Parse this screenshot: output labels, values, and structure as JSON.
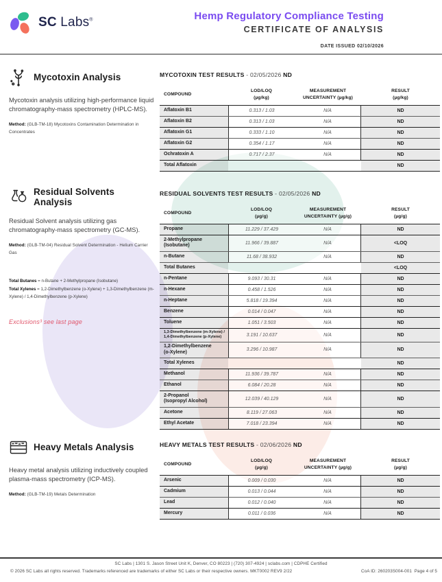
{
  "header": {
    "logo_sc": "SC",
    "logo_labs": "Labs",
    "logo_reg": "®",
    "title": "Hemp Regulatory Compliance Testing",
    "subtitle": "CERTIFICATE OF ANALYSIS",
    "date_issued": "DATE ISSUED 02/10/2026"
  },
  "colors": {
    "accent_purple": "#7a4bf0",
    "logo_green": "#2ebd8e",
    "logo_purple": "#7a5bf0",
    "logo_orange": "#f4715c",
    "exclusion_red": "#e0556a",
    "watermark_teal": "#e2f1ec",
    "watermark_lavender": "#eae6f7",
    "watermark_pink": "#fcece7"
  },
  "sections": [
    {
      "icon": "mycotoxin-spore-icon",
      "title": "Mycotoxin Analysis",
      "description": "Mycotoxin analysis utilizing high-performance liquid chromatography-mass spectrometry (HPLC-MS).",
      "method_label": "Method:",
      "method": " (GLB-TM-18) Mycotoxins Contamination Determination in Concentrates",
      "table": {
        "name": "MYCOTOXIN TEST RESULTS",
        "separator": " - ",
        "date": "02/05/2026",
        "flag": "ND",
        "columns": [
          "COMPOUND",
          "LOD/LOQ",
          "MEASUREMENT",
          "RESULT"
        ],
        "column_sub": [
          "",
          "(µg/kg)",
          "UNCERTAINTY (µg/kg)",
          "(µg/kg)"
        ],
        "rows": [
          {
            "compound": "Aflatoxin B1",
            "lod": "0.313 / 1.03",
            "unc": "N/A",
            "result": "ND",
            "end": false
          },
          {
            "compound": "Aflatoxin B2",
            "lod": "0.313 / 1.03",
            "unc": "N/A",
            "result": "ND",
            "end": true
          },
          {
            "compound": "Aflatoxin G1",
            "lod": "0.333 / 1.10",
            "unc": "N/A",
            "result": "ND",
            "end": false
          },
          {
            "compound": "Aflatoxin G2",
            "lod": "0.354 / 1.17",
            "unc": "N/A",
            "result": "ND",
            "end": true
          },
          {
            "compound": "Ochratoxin A",
            "lod": "0.717 / 2.37",
            "unc": "N/A",
            "result": "ND",
            "end": true
          },
          {
            "compound": "Total Aflatoxin",
            "lod": "",
            "unc": "",
            "result": "ND",
            "end": true
          }
        ]
      }
    },
    {
      "icon": "flasks-icon",
      "title": "Residual Solvents Analysis",
      "description": "Residual Solvent analysis utilizing gas chromatography-mass spectrometry (GC-MS).",
      "method_label": "Method:",
      "method": " (GLB-TM-04) Residual Solvent Determination - Helium Carrier Gas",
      "formulas": [
        {
          "lead": "Total Butanes",
          "rest": " = n-Butane + 2-Methylpropane (Isobutane)"
        },
        {
          "lead": "Total Xylenes",
          "rest": " = 1,2-Dimethylbenzene (o-Xylene) + 1,3-Dimethylbenzene (m-Xylene) / 1,4-Dimethylbenzene (p-Xylene)"
        }
      ],
      "exclusions": "Exclusions³ see last page",
      "table": {
        "name": "RESIDUAL SOLVENTS TEST RESULTS",
        "separator": " - ",
        "date": "02/05/2026",
        "flag": "ND",
        "columns": [
          "COMPOUND",
          "LOD/LOQ",
          "MEASUREMENT",
          "RESULT"
        ],
        "column_sub": [
          "",
          "(µg/g)",
          "UNCERTAINTY (µg/g)",
          "(µg/g)"
        ],
        "rows": [
          {
            "compound": "Propane",
            "lod": "11.229 / 37.429",
            "unc": "N/A",
            "result": "ND",
            "end": true
          },
          {
            "compound": "2-Methylpropane\n(Isobutane)",
            "lod": "11.966 / 39.887",
            "unc": "N/A",
            "result": "<LOQ",
            "end": false
          },
          {
            "compound": "n-Butane",
            "lod": "11.68 / 38.932",
            "unc": "N/A",
            "result": "ND",
            "end": false
          },
          {
            "compound": "Total Butanes",
            "lod": "",
            "unc": "",
            "result": "<LOQ",
            "end": true
          },
          {
            "compound": "n-Pentane",
            "lod": "9.093 / 30.31",
            "unc": "N/A",
            "result": "ND",
            "end": true
          },
          {
            "compound": "n-Hexane",
            "lod": "0.458 / 1.526",
            "unc": "N/A",
            "result": "ND",
            "end": false
          },
          {
            "compound": "n-Heptane",
            "lod": "5.818 / 19.394",
            "unc": "N/A",
            "result": "ND",
            "end": true
          },
          {
            "compound": "Benzene",
            "lod": "0.014 / 0.047",
            "unc": "N/A",
            "result": "ND",
            "end": true
          },
          {
            "compound": "Toluene",
            "lod": "1.051 / 3.503",
            "unc": "N/A",
            "result": "ND",
            "end": true
          },
          {
            "compound": "1,3-Dimethylbenzene (m-Xylene) /\n1,4-Dimethylbenzene (p-Xylene)",
            "lod": "3.191 / 10.637",
            "unc": "N/A",
            "result": "ND",
            "end": false,
            "small": true
          },
          {
            "compound": "1,2-Dimethylbenzene\n(o-Xylene)",
            "lod": "3.296 / 10.987",
            "unc": "N/A",
            "result": "ND",
            "end": false
          },
          {
            "compound": "Total Xylenes",
            "lod": "",
            "unc": "",
            "result": "ND",
            "end": true
          },
          {
            "compound": "Methanol",
            "lod": "11.936 / 39.787",
            "unc": "N/A",
            "result": "ND",
            "end": false
          },
          {
            "compound": "Ethanol",
            "lod": "6.084 / 20.28",
            "unc": "N/A",
            "result": "ND",
            "end": true
          },
          {
            "compound": "2-Propanol\n(Isopropyl Alcohol)",
            "lod": "12.039 / 40.129",
            "unc": "N/A",
            "result": "ND",
            "end": false
          },
          {
            "compound": "Acetone",
            "lod": "8.119 / 27.063",
            "unc": "N/A",
            "result": "ND",
            "end": true
          },
          {
            "compound": "Ethyl Acetate",
            "lod": "7.018 / 23.394",
            "unc": "N/A",
            "result": "ND",
            "end": true
          }
        ]
      }
    },
    {
      "icon": "metal-layers-icon",
      "title": "Heavy Metals Analysis",
      "description": "Heavy metal analysis utilizing inductively coupled plasma-mass spectrometry (ICP-MS).",
      "method_label": "Method:",
      "method": " (GLB-TM-19) Metals Determination",
      "table": {
        "name": "HEAVY METALS TEST RESULTS",
        "separator": " - ",
        "date": "02/06/2026",
        "flag": "ND",
        "columns": [
          "COMPOUND",
          "LOD/LOQ",
          "MEASUREMENT",
          "RESULT"
        ],
        "column_sub": [
          "",
          "(µg/g)",
          "UNCERTAINTY (µg/g)",
          "(µg/g)"
        ],
        "rows": [
          {
            "compound": "Arsenic",
            "lod": "0.009 / 0.030",
            "unc": "N/A",
            "result": "ND",
            "end": true
          },
          {
            "compound": "Cadmium",
            "lod": "0.013 / 0.044",
            "unc": "N/A",
            "result": "ND",
            "end": false
          },
          {
            "compound": "Lead",
            "lod": "0.012 / 0.040",
            "unc": "N/A",
            "result": "ND",
            "end": true
          },
          {
            "compound": "Mercury",
            "lod": "0.011 / 0.036",
            "unc": "N/A",
            "result": "ND",
            "end": true
          }
        ]
      }
    }
  ],
  "footer": {
    "line1": "SC Labs | 1301 S. Jason Street Unit K, Denver, CO 80223 | (720) 307-4924 | sclabs.com | CDPHE Certified",
    "line2": "© 2026 SC Labs all rights reserved. Trademarks referenced are trademarks of either SC Labs or their respective owners. MKT0002 REV9 2/22",
    "coa_id": "CoA ID: 260203S004-001",
    "page": "Page 4 of 5"
  }
}
